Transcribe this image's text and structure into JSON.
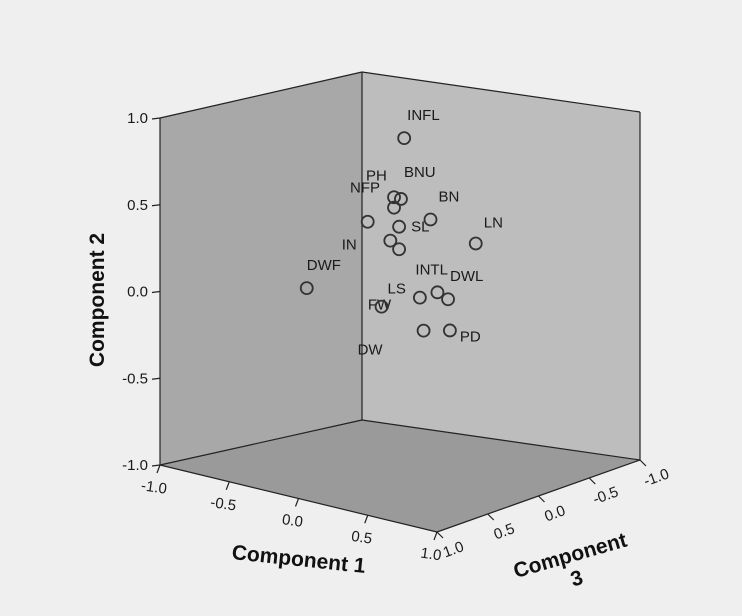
{
  "chart_data": {
    "type": "scatter",
    "title": "",
    "projection": "3d-box",
    "xlabel": "Component 1",
    "ylabel": "Component 2",
    "zlabel": "Component",
    "zlabel_line2": "3",
    "xlim": [
      -1.0,
      1.0
    ],
    "ylim": [
      -1.0,
      1.0
    ],
    "zlim": [
      -1.0,
      1.0
    ],
    "x_ticks": [
      "-1.0",
      "-0.5",
      "0.0",
      "0.5",
      "1.0"
    ],
    "y_ticks": [
      "1.0",
      "0.5",
      "0.0",
      "-0.5",
      "-1.0"
    ],
    "z_ticks": [
      "1.0",
      "0.5",
      "0.0",
      "-0.5",
      "-1.0"
    ],
    "series": [
      {
        "marker": "open-circle",
        "points": [
          {
            "label": "INFL",
            "x": 0.25,
            "y": 0.98,
            "z": 0.3
          },
          {
            "label": "BNU",
            "x": 0.3,
            "y": 0.66,
            "z": 0.4
          },
          {
            "label": "PH",
            "x": 0.25,
            "y": 0.66,
            "z": 0.4
          },
          {
            "label": "BN",
            "x": 0.55,
            "y": 0.6,
            "z": 0.45
          },
          {
            "label": "LN",
            "x": 0.95,
            "y": 0.56,
            "z": 0.55
          },
          {
            "label": "NFP",
            "x": 0.25,
            "y": 0.6,
            "z": 0.4
          },
          {
            "label": "SL",
            "x": 0.25,
            "y": 0.48,
            "z": 0.35
          },
          {
            "label": "IN",
            "x": -0.05,
            "y": 0.43,
            "z": 0.25
          },
          {
            "label": "",
            "x": 0.15,
            "y": 0.37,
            "z": 0.3
          },
          {
            "label": "",
            "x": 0.25,
            "y": 0.35,
            "z": 0.35
          },
          {
            "label": "INTL",
            "x": 0.6,
            "y": 0.19,
            "z": 0.45
          },
          {
            "label": "DWL",
            "x": 0.75,
            "y": 0.2,
            "z": 0.55
          },
          {
            "label": "FW",
            "x": 0.4,
            "y": 0.1,
            "z": 0.35
          },
          {
            "label": "PD",
            "x": 0.8,
            "y": 0.04,
            "z": 0.6
          },
          {
            "label": "LS",
            "x": 0.05,
            "y": -0.04,
            "z": 0.25
          },
          {
            "label": "DW",
            "x": 0.5,
            "y": -0.05,
            "z": 0.45
          },
          {
            "label": "DWF",
            "x": -0.6,
            "y": -0.09,
            "z": 0.1
          }
        ]
      }
    ],
    "colors": {
      "background": "#efefef",
      "left_wall": "#a8a8a8",
      "back_wall": "#bdbdbd",
      "floor": "#9a9a9a",
      "edges": "#222222",
      "marker_stroke": "#333333"
    }
  }
}
